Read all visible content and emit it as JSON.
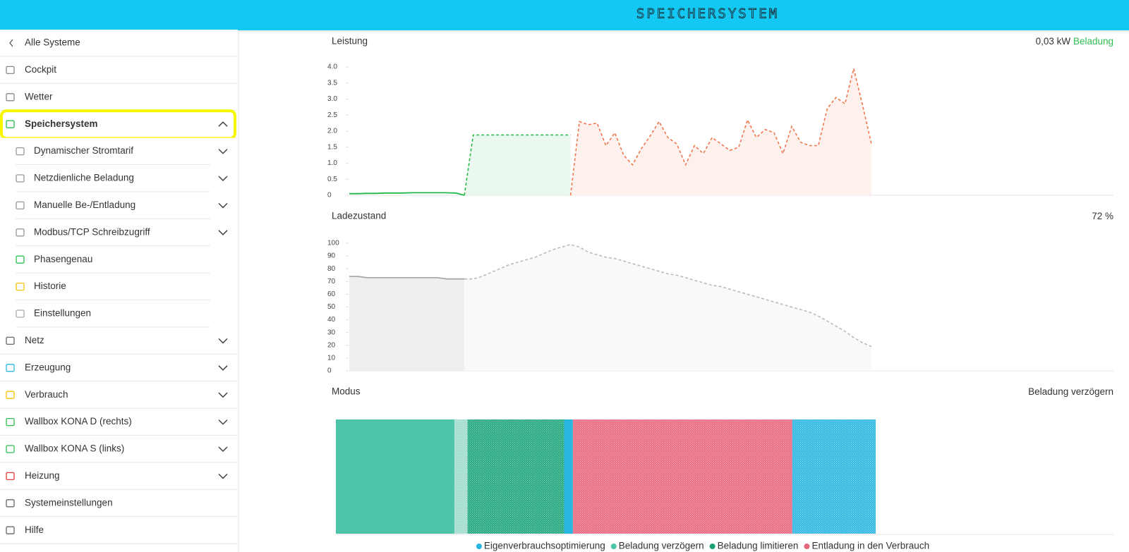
{
  "header": {
    "title": "SPEICHERSYSTEM"
  },
  "sidebar": {
    "items": [
      {
        "label": "Alle Systeme",
        "back": true
      },
      {
        "label": "Cockpit",
        "icon_color": "#888888"
      },
      {
        "label": "Wetter",
        "icon_color": "#888888"
      },
      {
        "label": "Speichersystem",
        "icon_color": "#2ebd4f",
        "active": true,
        "expandable": true,
        "expanded": true
      },
      {
        "label": "Dynamischer Stromtarif",
        "icon_color": "#999999",
        "sub": true,
        "expandable": true
      },
      {
        "label": "Netzdienliche Beladung",
        "icon_color": "#999999",
        "sub": true,
        "expandable": true
      },
      {
        "label": "Manuelle Be-/Entladung",
        "icon_color": "#999999",
        "sub": true,
        "expandable": true
      },
      {
        "label": "Modbus/TCP Schreibzugriff",
        "icon_color": "#999999",
        "sub": true,
        "expandable": true
      },
      {
        "label": "Phasengenau",
        "icon_color": "#2ebd4f",
        "sub": true
      },
      {
        "label": "Historie",
        "icon_color": "#f5c400",
        "sub": true
      },
      {
        "label": "Einstellungen",
        "icon_color": "#aaaaaa",
        "sub": true
      },
      {
        "label": "Netz",
        "icon_color": "#666666",
        "expandable": true
      },
      {
        "label": "Erzeugung",
        "icon_color": "#29b6e0",
        "expandable": true
      },
      {
        "label": "Verbrauch",
        "icon_color": "#f5c400",
        "expandable": true
      },
      {
        "label": "Wallbox KONA D (rechts)",
        "icon_color": "#2ebd4f",
        "expandable": true
      },
      {
        "label": "Wallbox KONA S (links)",
        "icon_color": "#2ebd4f",
        "expandable": true
      },
      {
        "label": "Heizung",
        "icon_color": "#e53935",
        "expandable": true
      },
      {
        "label": "Systemeinstellungen",
        "icon_color": "#666666"
      },
      {
        "label": "Hilfe",
        "icon_color": "#666666"
      }
    ]
  },
  "chart_data": [
    {
      "type": "line",
      "title": "Leistung",
      "summary": "0,03 kW",
      "status": "Beladung",
      "status_color": "#2ebd4f",
      "ylim": [
        0,
        4
      ],
      "yticks": [
        {
          "value": 4,
          "label": "4.0"
        },
        3.5,
        {
          "value": 3,
          "label": "3.0"
        },
        2.5,
        {
          "value": 2,
          "label": "2.0"
        },
        1.5,
        {
          "value": 1,
          "label": "1.0"
        },
        0.5,
        0
      ],
      "series": [
        {
          "color": "#22b845",
          "dashed": false,
          "values": [
            0.05,
            0.05,
            0.06,
            0.06,
            0.07,
            0.07,
            0.07,
            0.08,
            0.08,
            0.08,
            0.08,
            0.08,
            0.07,
            0,
            null,
            null,
            null,
            null,
            null,
            null,
            null,
            null,
            null,
            null,
            null,
            null,
            null,
            null,
            null,
            null,
            null,
            null,
            null,
            null,
            null,
            null,
            null,
            null,
            null,
            null,
            null,
            null,
            null,
            null,
            null,
            null,
            null,
            null,
            null,
            null,
            null,
            null,
            null,
            null,
            null,
            null,
            null,
            null,
            null,
            null
          ]
        },
        {
          "color": "#22b845",
          "dashed": true,
          "area": "#ebf8ef",
          "values": [
            null,
            null,
            null,
            null,
            null,
            null,
            null,
            null,
            null,
            null,
            null,
            null,
            null,
            0,
            1.88,
            1.88,
            1.88,
            1.88,
            1.88,
            1.88,
            1.88,
            1.88,
            1.88,
            1.88,
            1.88,
            1.88,
            null,
            null,
            null,
            null,
            null,
            null,
            null,
            null,
            null,
            null,
            null,
            null,
            null,
            null,
            null,
            null,
            null,
            null,
            null,
            null,
            null,
            null,
            null,
            null,
            null,
            null,
            null,
            null,
            null,
            null,
            null,
            null,
            null,
            null
          ]
        },
        {
          "color": "#f07850",
          "dashed": true,
          "area": "#fdf1ed",
          "values": [
            null,
            null,
            null,
            null,
            null,
            null,
            null,
            null,
            null,
            null,
            null,
            null,
            null,
            null,
            null,
            null,
            null,
            null,
            null,
            null,
            null,
            null,
            null,
            null,
            null,
            0,
            2.3,
            2.2,
            2.25,
            1.55,
            1.95,
            1.25,
            0.95,
            1.45,
            1.85,
            2.3,
            1.8,
            1.6,
            0.95,
            1.55,
            1.3,
            1.8,
            1.6,
            1.4,
            1.5,
            2.35,
            1.8,
            2.05,
            1.95,
            1.3,
            2.15,
            1.65,
            1.55,
            1.55,
            2.7,
            3.05,
            2.85,
            3.95,
            2.8,
            1.6
          ]
        }
      ]
    },
    {
      "type": "line",
      "title": "Ladezustand",
      "summary": "72 %",
      "ylim": [
        0,
        100
      ],
      "yticks": [
        100,
        90,
        80,
        70,
        60,
        50,
        40,
        30,
        20,
        10,
        0
      ],
      "series": [
        {
          "color": "#aaaaaa",
          "dashed": false,
          "area": "#efefef",
          "values": [
            74,
            74,
            73,
            73,
            73,
            73,
            73,
            73,
            73,
            73,
            73,
            72,
            72,
            72,
            null,
            null,
            null,
            null,
            null,
            null,
            null,
            null,
            null,
            null,
            null,
            null,
            null,
            null,
            null,
            null,
            null,
            null,
            null,
            null,
            null,
            null,
            null,
            null,
            null,
            null,
            null,
            null,
            null,
            null,
            null,
            null,
            null,
            null,
            null,
            null,
            null,
            null,
            null,
            null,
            null,
            null,
            null,
            null,
            null,
            null
          ]
        },
        {
          "color": "#bbbbbb",
          "dashed": true,
          "area": "#f9f9f9",
          "values": [
            null,
            null,
            null,
            null,
            null,
            null,
            null,
            null,
            null,
            null,
            null,
            null,
            null,
            72,
            72,
            74,
            77,
            80,
            83,
            85,
            87,
            89,
            92,
            95,
            97,
            99,
            97,
            93,
            91,
            89,
            88,
            86,
            84,
            82,
            80,
            78,
            76,
            75,
            73,
            71,
            69,
            67,
            66,
            64,
            62,
            60,
            58,
            56,
            54,
            52,
            50,
            48,
            46,
            43,
            39,
            35,
            31,
            26,
            22,
            19
          ]
        }
      ]
    },
    {
      "type": "timeline",
      "title": "Modus",
      "summary": "Beladung verzögern",
      "series": [
        {
          "name": "Eigenverbrauchsoptimierung",
          "color": "#29b6e0"
        },
        {
          "name": "Beladung verzögern",
          "color": "#4bc4a8"
        },
        {
          "name": "Beladung limitieren",
          "color": "#1a9e77"
        },
        {
          "name": "Entladung in den Verbrauch",
          "color": "#e8667e"
        }
      ],
      "segments": [
        {
          "color": "#4bc4a8",
          "span": 13.5,
          "hatched": false
        },
        {
          "color": "#9ddccc",
          "span": 1.5,
          "hatched": true
        },
        {
          "color": "#1fa57c",
          "span": 11,
          "hatched": true
        },
        {
          "color": "#29b6e0",
          "span": 1,
          "hatched": false
        },
        {
          "color": "#e8667e",
          "span": 25,
          "hatched": true
        },
        {
          "color": "#29b6e0",
          "span": 9.5,
          "hatched": true
        }
      ]
    }
  ]
}
